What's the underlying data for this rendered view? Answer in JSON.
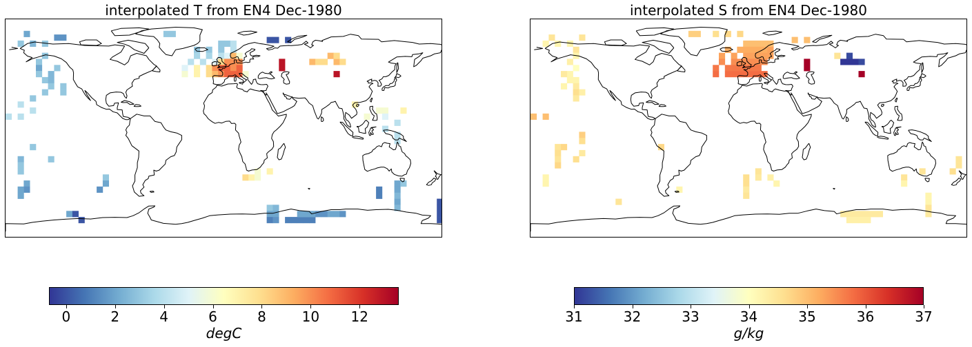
{
  "panels": [
    {
      "title": "interpolated T from EN4 Dec-1980",
      "colorbar": {
        "label": "degC",
        "min": -0.7,
        "max": 13.6,
        "ticks": [
          "0",
          "2",
          "4",
          "6",
          "8",
          "10",
          "12"
        ],
        "tick_values": [
          0,
          2,
          4,
          6,
          8,
          10,
          12
        ]
      },
      "cells": [
        [
          78,
          -165,
          2
        ],
        [
          75,
          -140,
          1.5
        ],
        [
          75,
          -135,
          1.5
        ],
        [
          78,
          -50,
          3
        ],
        [
          78,
          -45,
          3
        ],
        [
          70,
          -170,
          3
        ],
        [
          70,
          -160,
          2.5
        ],
        [
          70,
          -150,
          3
        ],
        [
          73,
          35,
          0
        ],
        [
          73,
          40,
          0
        ],
        [
          73,
          50,
          0
        ],
        [
          70,
          -5,
          3
        ],
        [
          70,
          0,
          3
        ],
        [
          70,
          5,
          4
        ],
        [
          65,
          -25,
          3
        ],
        [
          65,
          -15,
          3
        ],
        [
          65,
          -5,
          3
        ],
        [
          65,
          5,
          4
        ],
        [
          60,
          -25,
          3.5
        ],
        [
          60,
          -15,
          3.5
        ],
        [
          60,
          -5,
          4
        ],
        [
          60,
          0,
          5
        ],
        [
          60,
          5,
          9
        ],
        [
          60,
          10,
          6
        ],
        [
          55,
          -30,
          4
        ],
        [
          55,
          -20,
          4
        ],
        [
          55,
          -10,
          5
        ],
        [
          55,
          -5,
          8
        ],
        [
          55,
          0,
          10
        ],
        [
          55,
          5,
          10
        ],
        [
          55,
          10,
          10
        ],
        [
          50,
          -35,
          5
        ],
        [
          50,
          -25,
          7
        ],
        [
          50,
          -15,
          8
        ],
        [
          50,
          -10,
          10
        ],
        [
          50,
          -5,
          11
        ],
        [
          50,
          0,
          11
        ],
        [
          50,
          5,
          10
        ],
        [
          50,
          10,
          11
        ],
        [
          45,
          -35,
          6
        ],
        [
          45,
          -25,
          7
        ],
        [
          45,
          -15,
          8
        ],
        [
          45,
          -10,
          9
        ],
        [
          45,
          -5,
          10
        ],
        [
          45,
          0,
          11
        ],
        [
          45,
          5,
          11
        ],
        [
          45,
          10,
          11
        ],
        [
          45,
          15,
          6
        ],
        [
          55,
          45,
          13
        ],
        [
          50,
          45,
          13
        ],
        [
          55,
          70,
          9
        ],
        [
          55,
          75,
          8
        ],
        [
          55,
          80,
          8
        ],
        [
          55,
          90,
          9
        ],
        [
          55,
          95,
          8
        ],
        [
          60,
          85,
          9
        ],
        [
          60,
          90,
          8
        ],
        [
          45,
          90,
          13
        ],
        [
          60,
          210,
          3
        ],
        [
          55,
          205,
          3
        ],
        [
          50,
          205,
          2
        ],
        [
          45,
          205,
          3
        ],
        [
          40,
          210,
          3
        ],
        [
          50,
          220,
          3
        ],
        [
          45,
          215,
          2.5
        ],
        [
          40,
          215,
          2.5
        ],
        [
          35,
          215,
          3
        ],
        [
          30,
          210,
          3
        ],
        [
          35,
          225,
          3
        ],
        [
          30,
          225,
          3
        ],
        [
          25,
          200,
          3
        ],
        [
          20,
          190,
          4
        ],
        [
          15,
          200,
          4
        ],
        [
          10,
          190,
          4
        ],
        [
          10,
          180,
          4
        ],
        [
          15,
          145,
          7
        ],
        [
          15,
          130,
          6
        ],
        [
          15,
          125,
          6
        ],
        [
          10,
          130,
          5
        ],
        [
          20,
          105,
          7
        ],
        [
          10,
          115,
          6
        ],
        [
          5,
          140,
          4
        ],
        [
          0,
          130,
          4
        ],
        [
          -5,
          140,
          4
        ],
        [
          -10,
          140,
          4
        ],
        [
          -15,
          200,
          3
        ],
        [
          -25,
          215,
          3
        ],
        [
          -25,
          -170,
          2.5
        ],
        [
          -30,
          -170,
          3
        ],
        [
          -35,
          -170,
          3
        ],
        [
          -45,
          -165,
          2
        ],
        [
          -50,
          -165,
          1.5
        ],
        [
          -40,
          -100,
          3
        ],
        [
          -45,
          -100,
          2
        ],
        [
          -50,
          -105,
          1.5
        ],
        [
          -45,
          140,
          2
        ],
        [
          -50,
          140,
          2
        ],
        [
          -55,
          140,
          2.5
        ],
        [
          -60,
          140,
          2
        ],
        [
          -65,
          140,
          2.5
        ],
        [
          -45,
          145,
          3
        ],
        [
          -50,
          125,
          1
        ],
        [
          -55,
          125,
          1
        ],
        [
          -60,
          175,
          0
        ],
        [
          -65,
          175,
          0
        ],
        [
          -70,
          175,
          0
        ],
        [
          -75,
          175,
          0
        ],
        [
          -65,
          35,
          3
        ],
        [
          -70,
          35,
          2
        ],
        [
          -75,
          35,
          1
        ],
        [
          -65,
          40,
          2.5
        ],
        [
          -70,
          40,
          2
        ],
        [
          -75,
          40,
          1.5
        ],
        [
          -75,
          50,
          1
        ],
        [
          -75,
          55,
          1
        ],
        [
          -75,
          60,
          1
        ],
        [
          -75,
          65,
          1
        ],
        [
          -75,
          70,
          1
        ],
        [
          -70,
          60,
          2
        ],
        [
          -70,
          65,
          2
        ],
        [
          -70,
          70,
          2
        ],
        [
          -70,
          75,
          1.5
        ],
        [
          -70,
          80,
          1.5
        ],
        [
          -70,
          85,
          2
        ],
        [
          -70,
          90,
          2
        ],
        [
          -70,
          95,
          1.5
        ],
        [
          -40,
          15,
          8
        ],
        [
          -40,
          20,
          7
        ],
        [
          -40,
          25,
          6
        ],
        [
          -35,
          25,
          6
        ],
        [
          -35,
          35,
          7
        ],
        [
          -50,
          -170,
          2
        ],
        [
          -55,
          -170,
          2
        ],
        [
          -70,
          -130,
          2
        ],
        [
          -70,
          -125,
          0
        ],
        [
          -75,
          -120,
          0
        ]
      ]
    },
    {
      "title": "interpolated S from EN4 Dec-1980",
      "colorbar": {
        "label": "g/kg",
        "min": 31,
        "max": 37,
        "ticks": [
          "31",
          "32",
          "33",
          "34",
          "35",
          "36",
          "37"
        ],
        "tick_values": [
          31,
          32,
          33,
          34,
          35,
          36,
          37
        ]
      },
      "cells": [
        [
          75,
          -165,
          34.5
        ],
        [
          75,
          -140,
          34.5
        ],
        [
          78,
          -50,
          34.8
        ],
        [
          78,
          -45,
          34.8
        ],
        [
          78,
          -30,
          34.6
        ],
        [
          78,
          -20,
          34.7
        ],
        [
          78,
          -10,
          34.7
        ],
        [
          70,
          -170,
          34.2
        ],
        [
          70,
          -160,
          34.2
        ],
        [
          70,
          -150,
          34.2
        ],
        [
          73,
          35,
          35
        ],
        [
          73,
          45,
          35
        ],
        [
          70,
          -5,
          35
        ],
        [
          70,
          0,
          35
        ],
        [
          70,
          5,
          35
        ],
        [
          70,
          10,
          35
        ],
        [
          70,
          15,
          35
        ],
        [
          65,
          -20,
          35.2
        ],
        [
          65,
          -10,
          35.2
        ],
        [
          65,
          -5,
          35.2
        ],
        [
          65,
          0,
          35.2
        ],
        [
          65,
          5,
          35.2
        ],
        [
          65,
          10,
          35.2
        ],
        [
          65,
          15,
          35.3
        ],
        [
          60,
          -25,
          35.3
        ],
        [
          60,
          -15,
          35.3
        ],
        [
          60,
          -5,
          35.3
        ],
        [
          60,
          0,
          35.3
        ],
        [
          60,
          5,
          35.3
        ],
        [
          60,
          10,
          35.3
        ],
        [
          60,
          15,
          35.3
        ],
        [
          55,
          -25,
          35.5
        ],
        [
          55,
          -15,
          35.5
        ],
        [
          55,
          -10,
          35.5
        ],
        [
          55,
          -5,
          35.5
        ],
        [
          55,
          0,
          35.5
        ],
        [
          55,
          5,
          35.5
        ],
        [
          55,
          10,
          35.5
        ],
        [
          50,
          -30,
          35.7
        ],
        [
          50,
          -20,
          35.7
        ],
        [
          50,
          -15,
          35.7
        ],
        [
          50,
          -10,
          35.7
        ],
        [
          50,
          -5,
          35.7
        ],
        [
          50,
          0,
          35.7
        ],
        [
          50,
          5,
          35.7
        ],
        [
          45,
          -30,
          35.8
        ],
        [
          45,
          -20,
          35.8
        ],
        [
          45,
          -15,
          35.8
        ],
        [
          45,
          -10,
          35.8
        ],
        [
          45,
          -5,
          35.8
        ],
        [
          45,
          0,
          35.8
        ],
        [
          45,
          5,
          35.8
        ],
        [
          45,
          10,
          35.8
        ],
        [
          55,
          45,
          37
        ],
        [
          50,
          45,
          37
        ],
        [
          60,
          70,
          34.5
        ],
        [
          55,
          75,
          31
        ],
        [
          55,
          80,
          31
        ],
        [
          55,
          85,
          31
        ],
        [
          55,
          90,
          31.2
        ],
        [
          60,
          80,
          31.2
        ],
        [
          45,
          90,
          37
        ],
        [
          55,
          210,
          34.3
        ],
        [
          50,
          215,
          34
        ],
        [
          45,
          210,
          34.2
        ],
        [
          45,
          205,
          34.4
        ],
        [
          40,
          210,
          34.2
        ],
        [
          40,
          215,
          34.2
        ],
        [
          35,
          205,
          34.2
        ],
        [
          35,
          215,
          34.4
        ],
        [
          30,
          215,
          34.6
        ],
        [
          25,
          215,
          34.4
        ],
        [
          30,
          220,
          34.3
        ],
        [
          65,
          215,
          34.5
        ],
        [
          60,
          215,
          34.2
        ],
        [
          10,
          190,
          35
        ],
        [
          10,
          180,
          35
        ],
        [
          -5,
          220,
          34.8
        ],
        [
          -10,
          220,
          34.6
        ],
        [
          -15,
          -160,
          34.5
        ],
        [
          -20,
          -160,
          34.6
        ],
        [
          -25,
          -160,
          34.5
        ],
        [
          -30,
          -160,
          34.7
        ],
        [
          -40,
          -170,
          34.2
        ],
        [
          -45,
          -170,
          34.2
        ],
        [
          -40,
          125,
          34.5
        ],
        [
          -45,
          125,
          34.2
        ],
        [
          -35,
          140,
          34.5
        ],
        [
          -20,
          220,
          34.4
        ],
        [
          -25,
          215,
          34.6
        ],
        [
          -40,
          -5,
          34.6
        ],
        [
          -45,
          -5,
          34.6
        ],
        [
          -35,
          5,
          34.5
        ],
        [
          -50,
          -5,
          34.4
        ],
        [
          -55,
          -5,
          34.5
        ],
        [
          -50,
          -60,
          34.2
        ],
        [
          -60,
          -110,
          34.5
        ],
        [
          -45,
          20,
          34.2
        ],
        [
          -40,
          15,
          34.3
        ],
        [
          -40,
          5,
          34.4
        ],
        [
          -55,
          145,
          34.2
        ],
        [
          -60,
          145,
          34.2
        ],
        [
          -65,
          145,
          34.5
        ],
        [
          -70,
          145,
          34.4
        ],
        [
          -70,
          75,
          34.4
        ],
        [
          -70,
          80,
          34.4
        ],
        [
          -70,
          85,
          34.4
        ],
        [
          -70,
          90,
          34.4
        ],
        [
          -70,
          95,
          34.4
        ],
        [
          -70,
          100,
          34.4
        ],
        [
          -70,
          105,
          34.4
        ],
        [
          -75,
          80,
          34.3
        ],
        [
          -75,
          85,
          34.3
        ],
        [
          -75,
          90,
          34.3
        ],
        [
          -75,
          95,
          34.3
        ],
        [
          -25,
          170,
          34.5
        ],
        [
          -30,
          170,
          34.5
        ],
        [
          -35,
          165,
          34.6
        ],
        [
          -15,
          205,
          34.7
        ],
        [
          -15,
          -75,
          34.7
        ]
      ]
    }
  ]
}
